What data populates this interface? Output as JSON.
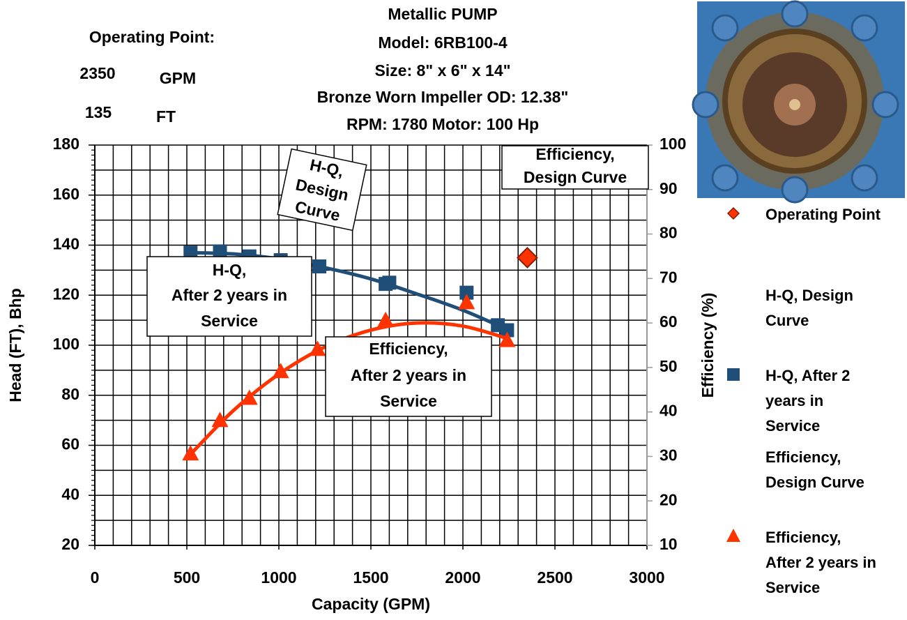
{
  "chart_data": {
    "type": "scatter",
    "title": [
      "Metallic PUMP",
      "Model: 6RB100-4",
      "Size: 8\" x 6\" x 14\"",
      "Bronze Worn Impeller OD: 12.38\"",
      "RPM: 1780 Motor: 100 Hp"
    ],
    "operating_point": {
      "label": "Operating Point:",
      "flow": 2350,
      "flow_unit": "GPM",
      "head": 135,
      "head_unit": "FT"
    },
    "x_label": "Capacity (GPM)",
    "y_label": "Head (FT), Bhp",
    "y2_label": "Efficiency (%)",
    "xlim": [
      0,
      3000
    ],
    "xticks": [
      0,
      500,
      1000,
      1500,
      2000,
      2500,
      3000
    ],
    "ylim": [
      20,
      180
    ],
    "yticks": [
      20,
      40,
      60,
      80,
      100,
      120,
      140,
      160,
      180
    ],
    "y2lim": [
      10,
      100
    ],
    "y2ticks": [
      10,
      20,
      30,
      40,
      50,
      60,
      70,
      80,
      90,
      100
    ],
    "grid": true,
    "xgrid_step": 100,
    "ygrid_step": 10,
    "yminor_step": 2,
    "legend": "right",
    "series": [
      {
        "name": "Operating Point",
        "marker": "diamond",
        "color": "#ff3300",
        "x": [
          2350
        ],
        "values": [
          135
        ]
      },
      {
        "name": "H-Q, Design Curve",
        "color": "#1f4e79",
        "x": [],
        "values": []
      },
      {
        "name": "H-Q, After 2 years in Service",
        "marker": "square",
        "color": "#1f4e79",
        "x": [
          520,
          680,
          840,
          1010,
          1220,
          1580,
          1600,
          2020,
          2190,
          2240
        ],
        "values": [
          137,
          137.5,
          135.5,
          134,
          131.5,
          124.5,
          125,
          121,
          108,
          106
        ],
        "trend": {
          "x": [
            500,
            750,
            1000,
            1250,
            1500,
            1750,
            2000,
            2250
          ],
          "values": [
            137,
            136.5,
            134.5,
            131,
            126.5,
            120.5,
            114,
            106
          ]
        }
      },
      {
        "name": "Efficiency, Design Curve",
        "color": "#ff3300",
        "axis": "y2",
        "x": [],
        "values": []
      },
      {
        "name": "Efficiency, After 2 years in Service",
        "marker": "triangle",
        "color": "#ff3300",
        "axis": "y2",
        "x": [
          520,
          680,
          840,
          1010,
          1210,
          1580,
          2020,
          2240
        ],
        "values": [
          30.5,
          38,
          43,
          49,
          54,
          60.5,
          64.5,
          56
        ],
        "trend": {
          "x": [
            500,
            750,
            1000,
            1250,
            1500,
            1750,
            2000,
            2250
          ],
          "values": [
            29.6,
            40.2,
            48.5,
            54.6,
            58.4,
            60,
            59.3,
            56.4
          ]
        }
      }
    ],
    "annotations": [
      {
        "lines": [
          "H-Q,",
          "Design",
          "Curve"
        ]
      },
      {
        "lines": [
          "Efficiency,",
          "Design Curve"
        ]
      },
      {
        "lines": [
          "H-Q,",
          "After 2 years in",
          "Service"
        ]
      },
      {
        "lines": [
          "Efficiency,",
          "After 2 years in",
          "Service"
        ]
      }
    ]
  }
}
